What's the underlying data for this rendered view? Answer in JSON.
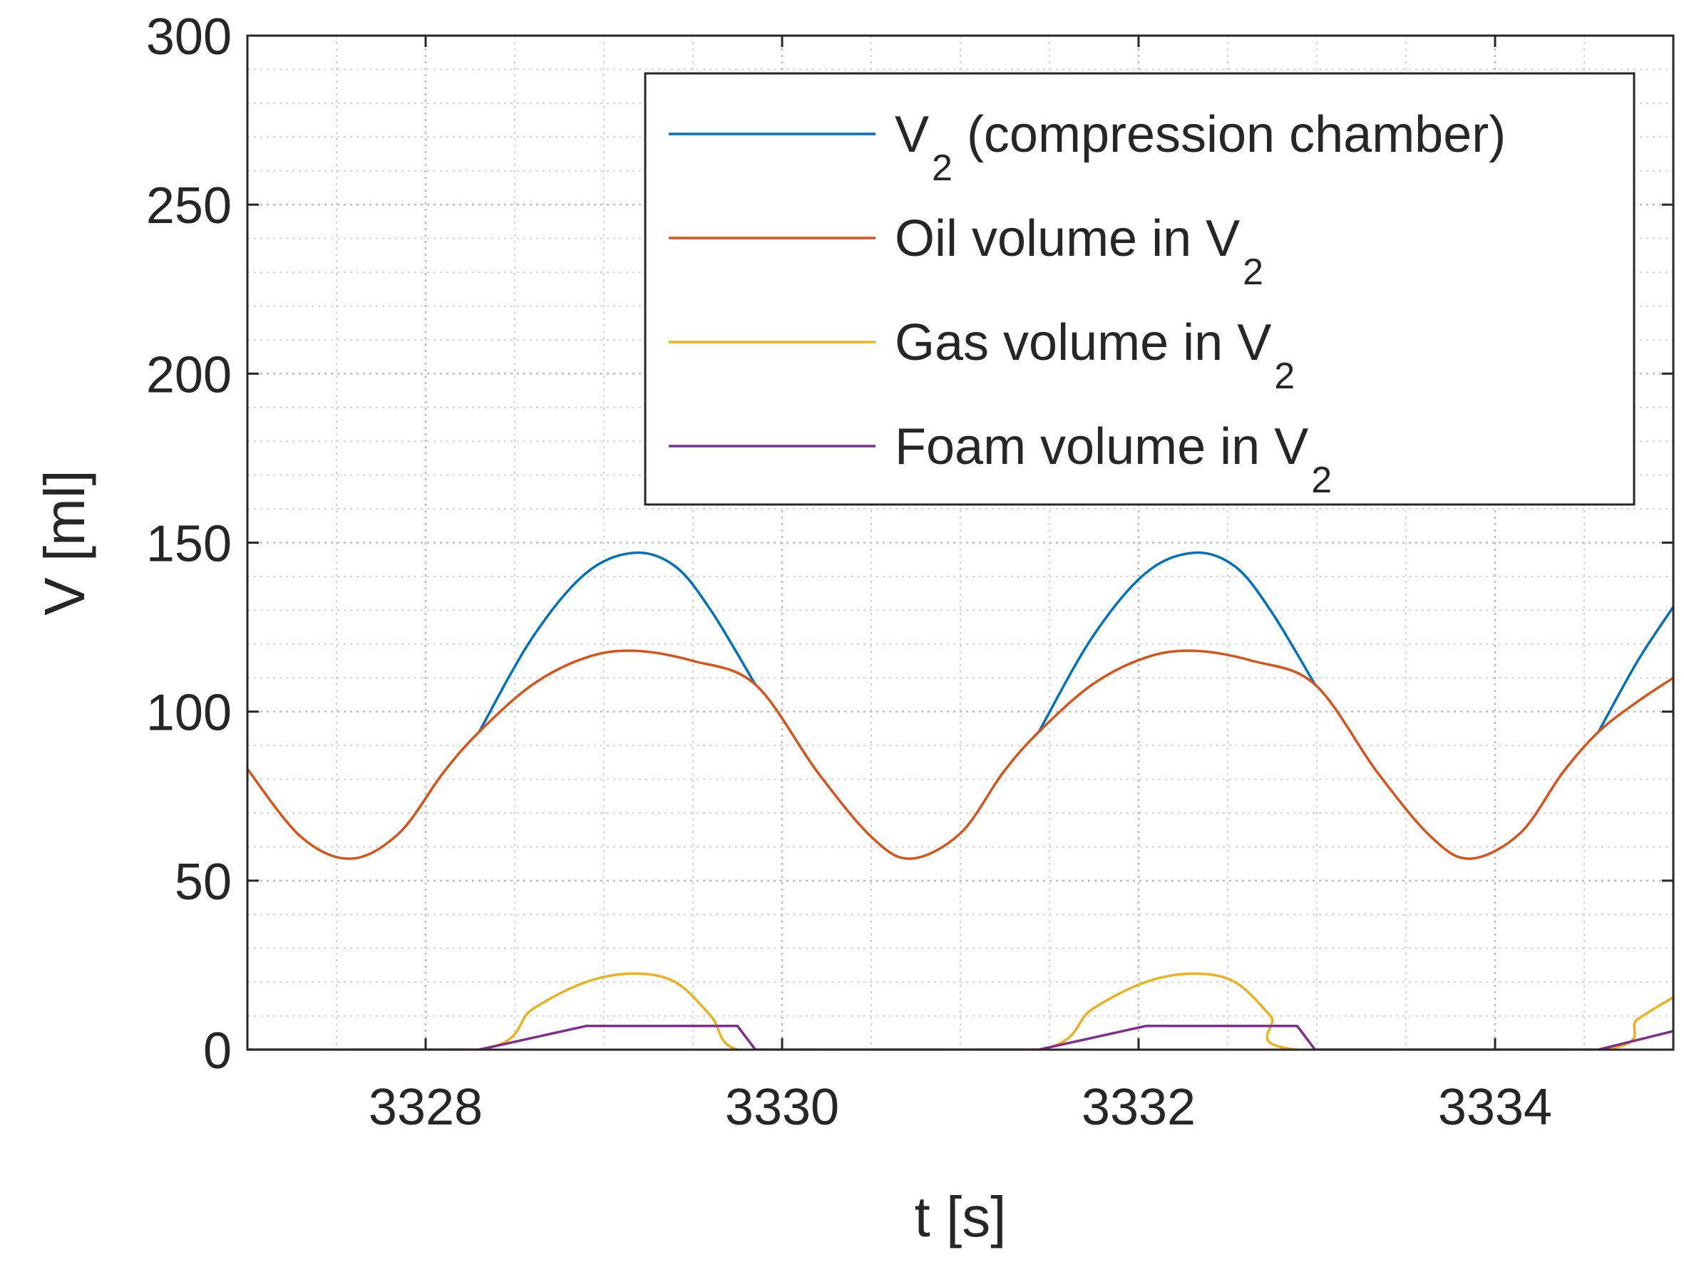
{
  "chart_data": {
    "type": "line",
    "title": "",
    "xlabel": "t [s]",
    "ylabel": "V [ml]",
    "xlim": [
      3327,
      3335
    ],
    "ylim": [
      0,
      300
    ],
    "xticks": [
      3328,
      3330,
      3332,
      3334
    ],
    "yticks": [
      0,
      50,
      100,
      150,
      200,
      250,
      300
    ],
    "grid": true,
    "minor_grid": true,
    "legend_position": "top-right",
    "period": 3.14,
    "series": [
      {
        "name": "V2 (compression chamber)",
        "legend_main": "V",
        "legend_sub": "2",
        "legend_tail": " (compression chamber)",
        "color": "#0072BD",
        "x": [
          3328.3,
          3328.6,
          3328.9,
          3329.17,
          3329.4,
          3329.6,
          3329.85,
          3331.44,
          3331.74,
          3332.04,
          3332.31,
          3332.54,
          3332.74,
          3332.99,
          3334.58,
          3334.8,
          3335.0
        ],
        "y": [
          94,
          122,
          141,
          147,
          143,
          130,
          108,
          94,
          122,
          141,
          147,
          143,
          130,
          108,
          94,
          115,
          131
        ]
      },
      {
        "name": "Oil volume in V2",
        "legend_main": "Oil volume in V",
        "legend_sub": "2",
        "legend_tail": "",
        "color": "#D95319",
        "x": [
          3327.0,
          3327.3,
          3327.58,
          3327.85,
          3328.1,
          3328.3,
          3328.6,
          3328.9,
          3329.17,
          3329.5,
          3329.85,
          3330.2,
          3330.5,
          3330.72,
          3331.0,
          3331.24,
          3331.44,
          3331.74,
          3332.04,
          3332.31,
          3332.64,
          3332.99,
          3333.34,
          3333.64,
          3333.86,
          3334.14,
          3334.38,
          3334.58,
          3334.8,
          3335.0
        ],
        "y": [
          83,
          63,
          56.5,
          64,
          82,
          94,
          108,
          116,
          118,
          115,
          108,
          82,
          63,
          56.5,
          64,
          82,
          94,
          108,
          116,
          118,
          115,
          108,
          82,
          63,
          56.5,
          64,
          82,
          94,
          103,
          110
        ]
      },
      {
        "name": "Gas volume in V2",
        "legend_main": "Gas volume in V",
        "legend_sub": "2",
        "legend_tail": "",
        "color": "#EDB120",
        "x": [
          3327.0,
          3328.3,
          3328.6,
          3328.9,
          3329.17,
          3329.4,
          3329.6,
          3329.75,
          3330.3,
          3331.44,
          3331.74,
          3332.04,
          3332.31,
          3332.54,
          3332.74,
          3332.89,
          3334.58,
          3334.8,
          3335.0
        ],
        "y": [
          0,
          0,
          12,
          20,
          22.5,
          20,
          10,
          0,
          0,
          0,
          12,
          20,
          22.5,
          20,
          10,
          0,
          0,
          9,
          15.5
        ]
      },
      {
        "name": "Foam volume in V2",
        "legend_main": "Foam volume in V",
        "legend_sub": "2",
        "legend_tail": "",
        "color": "#7E2F8E",
        "x": [
          3327.0,
          3328.3,
          3328.9,
          3329.75,
          3329.85,
          3331.44,
          3332.04,
          3332.89,
          3332.99,
          3334.58,
          3335.0
        ],
        "y": [
          0,
          0,
          7,
          7,
          0,
          0,
          7,
          7,
          0,
          0,
          5.5
        ]
      }
    ]
  }
}
